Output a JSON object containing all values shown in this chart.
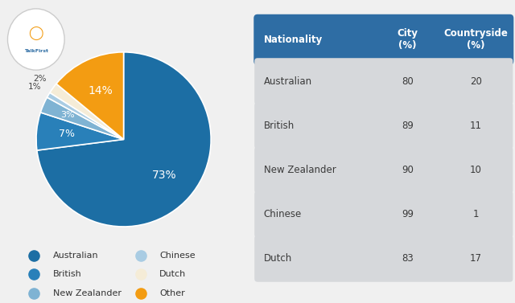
{
  "pie_labels": [
    "Australian",
    "British",
    "New Zealander",
    "Chinese",
    "Dutch",
    "Other"
  ],
  "pie_values": [
    73,
    7,
    3,
    1,
    2,
    14
  ],
  "pie_colors": [
    "#1C6EA4",
    "#2980B9",
    "#7FB3D3",
    "#A9CCE3",
    "#F5ECD7",
    "#F39C12"
  ],
  "legend_labels": [
    "Australian",
    "British",
    "New Zealander",
    "Chinese",
    "Dutch",
    "Other"
  ],
  "legend_colors": [
    "#1C6EA4",
    "#2980B9",
    "#7FB3D3",
    "#A9CCE3",
    "#F5ECD7",
    "#F39C12"
  ],
  "table_header": [
    "Nationality",
    "City\n(%)",
    "Countryside\n(%)"
  ],
  "table_rows": [
    [
      "Australian",
      "80",
      "20"
    ],
    [
      "British",
      "89",
      "11"
    ],
    [
      "New Zealander",
      "90",
      "10"
    ],
    [
      "Chinese",
      "99",
      "1"
    ],
    [
      "Dutch",
      "83",
      "17"
    ]
  ],
  "table_header_color": "#2E6DA4",
  "table_row_color": "#D6D8DB",
  "table_gap_color": "#F0F0F0",
  "bg_color": "#F0F0F0",
  "startangle": 90
}
